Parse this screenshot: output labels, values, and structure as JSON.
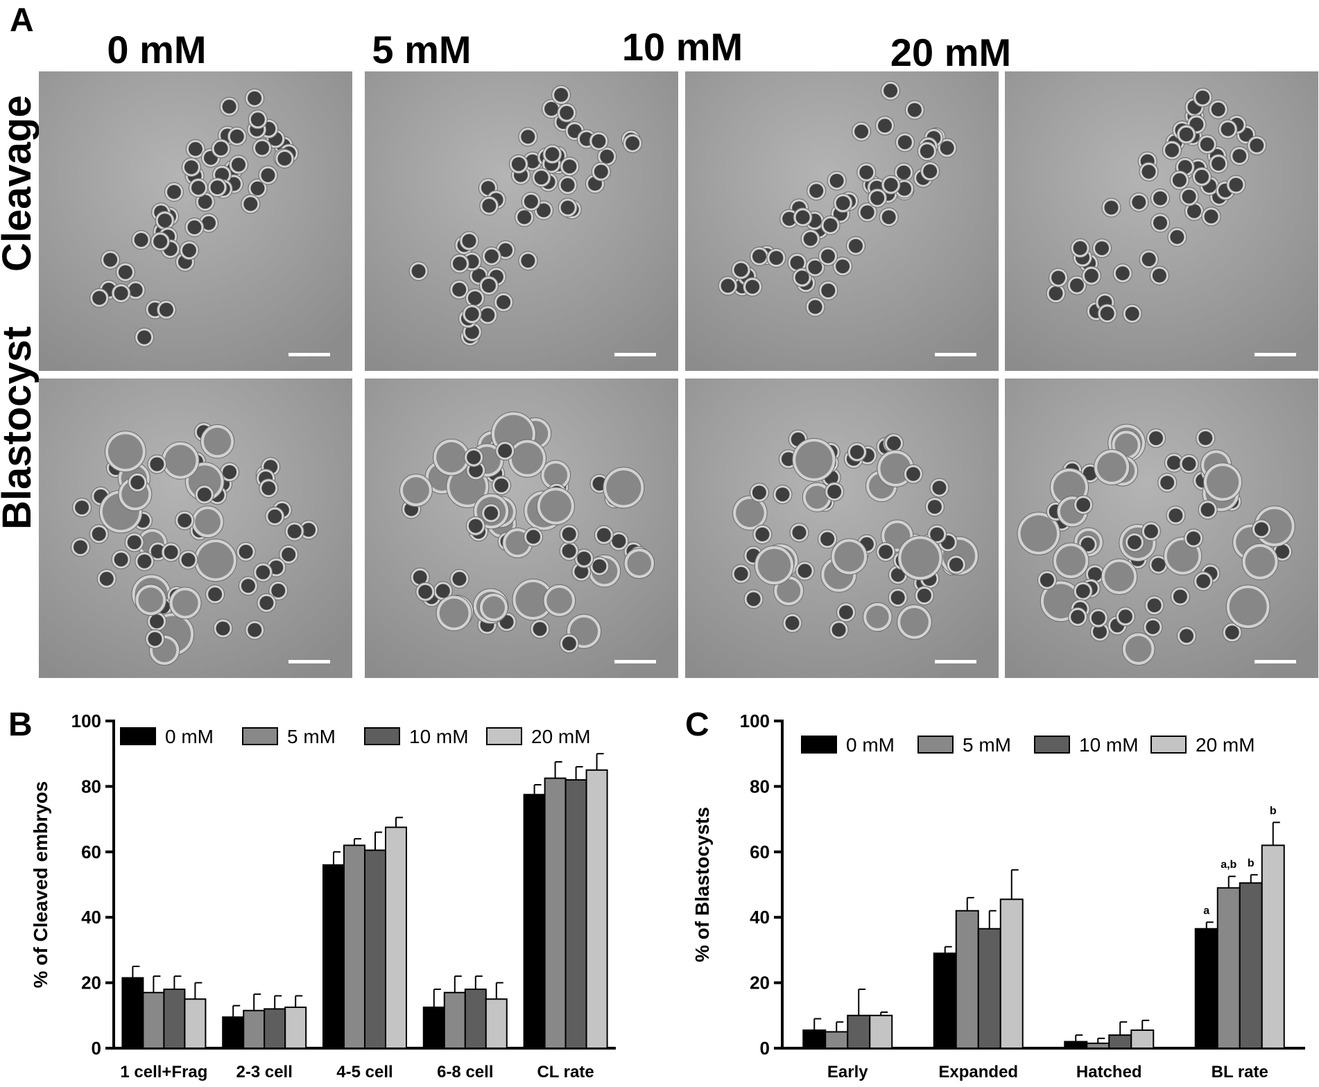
{
  "panel_a": {
    "letter": "A",
    "columns": [
      "0 mM",
      "5 mM",
      "10 mM",
      "20 mM"
    ],
    "rows": [
      "Cleavage",
      "Blastocyst"
    ]
  },
  "chart_data": [
    {
      "panel_letter": "B",
      "type": "bar",
      "ylabel": "% of Cleaved embryos",
      "ylim": [
        0,
        100
      ],
      "yticks": [
        0,
        20,
        40,
        60,
        80,
        100
      ],
      "categories": [
        "1 cell+Frag",
        "2-3 cell",
        "4-5 cell",
        "6-8 cell",
        "CL rate"
      ],
      "legend_placement": "top",
      "series": [
        {
          "name": "0 mM",
          "color": "#000000",
          "values": [
            21.5,
            9.5,
            56,
            12.5,
            77.5
          ],
          "errors": [
            3.5,
            3.5,
            4,
            5.5,
            3
          ]
        },
        {
          "name": "5 mM",
          "color": "#888888",
          "values": [
            17,
            11.5,
            62,
            17,
            82.5
          ],
          "errors": [
            5,
            5,
            2,
            5,
            5
          ]
        },
        {
          "name": "10 mM",
          "color": "#5e5e5e",
          "values": [
            18,
            12,
            60.5,
            18,
            82
          ],
          "errors": [
            4,
            4,
            5.5,
            4,
            4
          ]
        },
        {
          "name": "20 mM",
          "color": "#c4c4c4",
          "values": [
            15,
            12.5,
            67.5,
            15,
            85
          ],
          "errors": [
            5,
            3.5,
            3,
            5,
            5
          ]
        }
      ],
      "annotations": []
    },
    {
      "panel_letter": "C",
      "type": "bar",
      "ylabel": "% of Blastocysts",
      "ylim": [
        0,
        100
      ],
      "yticks": [
        0,
        20,
        40,
        60,
        80,
        100
      ],
      "categories": [
        "Early",
        "Expanded",
        "Hatched",
        "BL rate"
      ],
      "legend_placement": "top",
      "series": [
        {
          "name": "0 mM",
          "color": "#000000",
          "values": [
            5.5,
            29,
            2,
            36.5
          ],
          "errors": [
            3.5,
            2,
            2,
            2
          ]
        },
        {
          "name": "5 mM",
          "color": "#888888",
          "values": [
            5,
            42,
            1.5,
            49
          ],
          "errors": [
            3,
            4,
            1.5,
            3.5
          ]
        },
        {
          "name": "10 mM",
          "color": "#5e5e5e",
          "values": [
            10,
            36.5,
            4,
            50.5
          ],
          "errors": [
            8,
            5.5,
            4,
            2.5
          ]
        },
        {
          "name": "20 mM",
          "color": "#c4c4c4",
          "values": [
            10,
            45.5,
            5.5,
            62
          ],
          "errors": [
            1,
            9,
            3,
            7
          ]
        }
      ],
      "annotations": [
        {
          "category": "BL rate",
          "series": "0 mM",
          "label": "a"
        },
        {
          "category": "BL rate",
          "series": "5 mM",
          "label": "a,b"
        },
        {
          "category": "BL rate",
          "series": "10 mM",
          "label": "b"
        },
        {
          "category": "BL rate",
          "series": "20 mM",
          "label": "b"
        }
      ]
    }
  ]
}
